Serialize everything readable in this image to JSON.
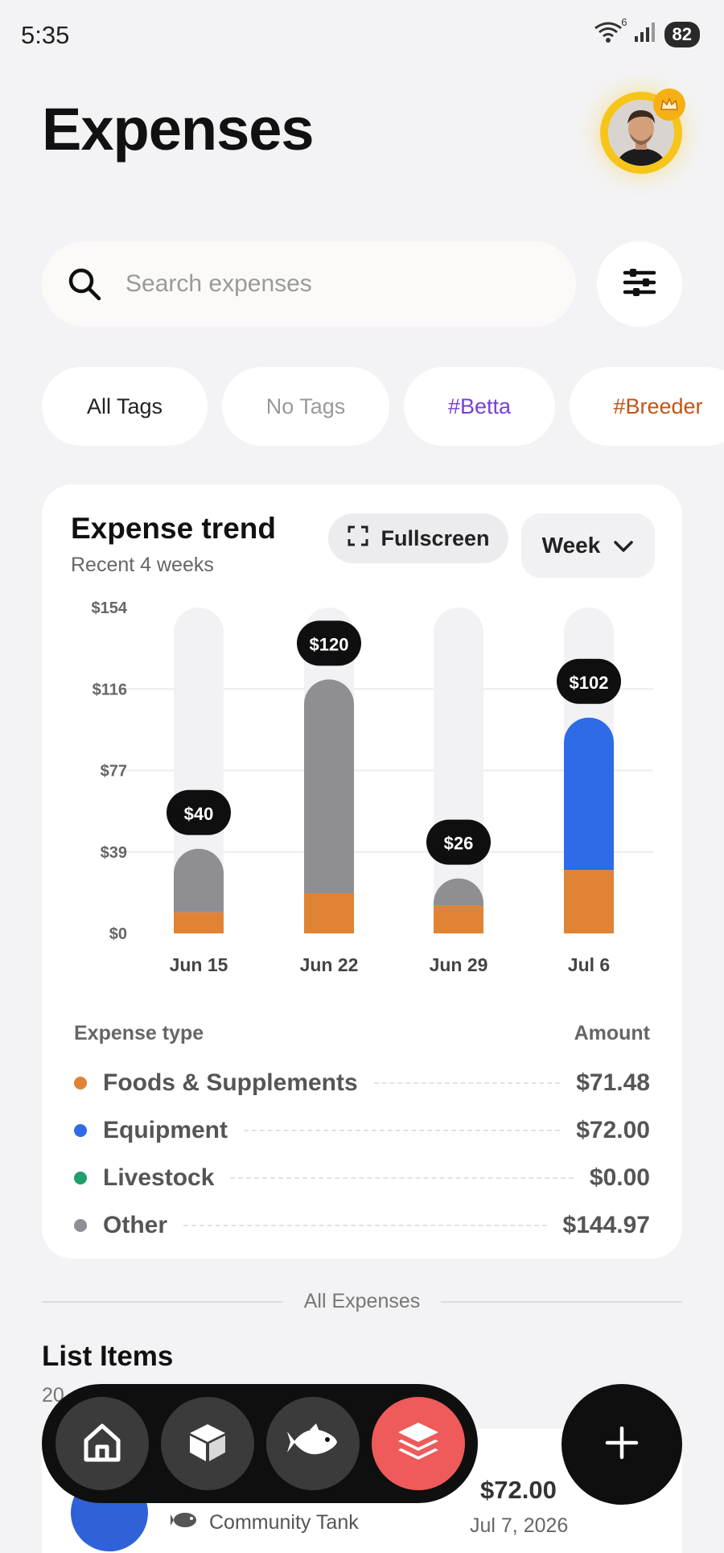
{
  "status_bar": {
    "time": "5:35",
    "battery": "82",
    "wifi_badge": "6"
  },
  "header": {
    "title": "Expenses"
  },
  "search": {
    "placeholder": "Search expenses"
  },
  "tags": [
    {
      "label": "All Tags",
      "color": "#222222"
    },
    {
      "label": "No Tags",
      "color": "#9a9a9a"
    },
    {
      "label": "#Betta",
      "color": "#7a3fd6"
    },
    {
      "label": "#Breeder",
      "color": "#c25516"
    }
  ],
  "trend_card": {
    "title": "Expense trend",
    "subtitle": "Recent 4 weeks",
    "fullscreen_label": "Fullscreen",
    "period_label": "Week"
  },
  "chart_data": {
    "type": "bar",
    "stacked": true,
    "categories": [
      "Jun 15",
      "Jun 22",
      "Jun 29",
      "Jul 6"
    ],
    "series": [
      {
        "name": "Foods & Supplements",
        "color": "#e08335",
        "values": [
          10,
          19,
          13,
          30
        ]
      },
      {
        "name": "Equipment",
        "color": "#2f6be6",
        "values": [
          0,
          0,
          0,
          72
        ]
      },
      {
        "name": "Livestock",
        "color": "#1f9e6e",
        "values": [
          0,
          0,
          0,
          0
        ]
      },
      {
        "name": "Other",
        "color": "#8e8e93",
        "values": [
          30,
          101,
          13,
          0
        ]
      }
    ],
    "totals": [
      "$40",
      "$120",
      "$26",
      "$102"
    ],
    "y_ticks": [
      "$154",
      "$116",
      "$77",
      "$39",
      "$0"
    ],
    "ylim": [
      0,
      154
    ],
    "grid": true
  },
  "breakdown": {
    "header_type": "Expense type",
    "header_amount": "Amount",
    "rows": [
      {
        "name": "Foods & Supplements",
        "amount": "$71.48",
        "color": "#e08335"
      },
      {
        "name": "Equipment",
        "amount": "$72.00",
        "color": "#2f6be6"
      },
      {
        "name": "Livestock",
        "amount": "$0.00",
        "color": "#1f9e6e"
      },
      {
        "name": "Other",
        "amount": "$144.97",
        "color": "#8e8e93"
      }
    ]
  },
  "divider_label": "All Expenses",
  "list": {
    "title": "List Items",
    "count": "20",
    "item": {
      "tank": "Community Tank",
      "amount": "$72.00",
      "date": "Jul 7, 2026"
    }
  },
  "nav": {
    "items": [
      "home-icon",
      "box-icon",
      "fish-icon",
      "layers-icon"
    ],
    "active": "layers-icon",
    "active_color": "#ef5a5a"
  }
}
